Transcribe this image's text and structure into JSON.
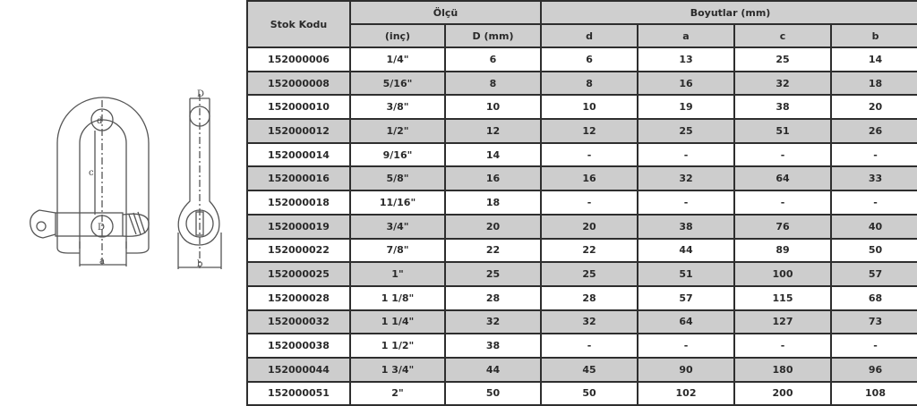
{
  "diagram": {
    "labels": {
      "d": "d",
      "c": "c",
      "D": "D",
      "a": "a",
      "b": "b",
      "D_side": "D"
    }
  },
  "table": {
    "headers": {
      "stock_code": "Stok Kodu",
      "size_group": "Ölçü",
      "dims_group": "Boyutlar (mm)",
      "inch": "(inç)",
      "D_mm": "D (mm)",
      "d": "d",
      "a": "a",
      "c": "c",
      "b": "b"
    },
    "rows": [
      [
        "152000006",
        "1/4\"",
        "6",
        "6",
        "13",
        "25",
        "14"
      ],
      [
        "152000008",
        "5/16\"",
        "8",
        "8",
        "16",
        "32",
        "18"
      ],
      [
        "152000010",
        "3/8\"",
        "10",
        "10",
        "19",
        "38",
        "20"
      ],
      [
        "152000012",
        "1/2\"",
        "12",
        "12",
        "25",
        "51",
        "26"
      ],
      [
        "152000014",
        "9/16\"",
        "14",
        "-",
        "-",
        "-",
        "-"
      ],
      [
        "152000016",
        "5/8\"",
        "16",
        "16",
        "32",
        "64",
        "33"
      ],
      [
        "152000018",
        "11/16\"",
        "18",
        "-",
        "-",
        "-",
        "-"
      ],
      [
        "152000019",
        "3/4\"",
        "20",
        "20",
        "38",
        "76",
        "40"
      ],
      [
        "152000022",
        "7/8\"",
        "22",
        "22",
        "44",
        "89",
        "50"
      ],
      [
        "152000025",
        "1\"",
        "25",
        "25",
        "51",
        "100",
        "57"
      ],
      [
        "152000028",
        "1 1/8\"",
        "28",
        "28",
        "57",
        "115",
        "68"
      ],
      [
        "152000032",
        "1 1/4\"",
        "32",
        "32",
        "64",
        "127",
        "73"
      ],
      [
        "152000038",
        "1 1/2\"",
        "38",
        "-",
        "-",
        "-",
        "-"
      ],
      [
        "152000044",
        "1 3/4\"",
        "44",
        "45",
        "90",
        "180",
        "96"
      ],
      [
        "152000051",
        "2\"",
        "50",
        "50",
        "102",
        "200",
        "108"
      ]
    ]
  }
}
